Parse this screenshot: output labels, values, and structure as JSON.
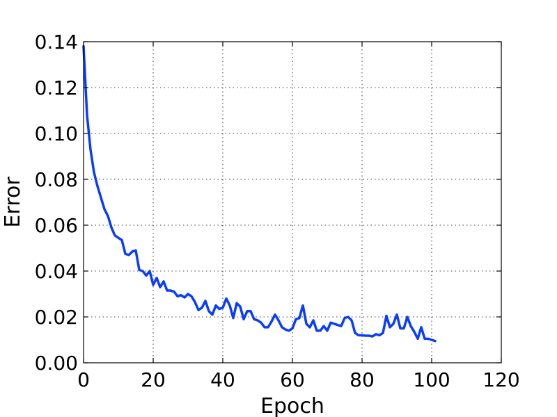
{
  "chart_data": {
    "type": "line",
    "title": "",
    "xlabel": "Epoch",
    "ylabel": "Error",
    "xlim": [
      0,
      120
    ],
    "ylim": [
      0,
      0.14
    ],
    "xticks": [
      0,
      20,
      40,
      60,
      80,
      100,
      120
    ],
    "xtick_labels": [
      "0",
      "20",
      "40",
      "60",
      "80",
      "100",
      "120"
    ],
    "yticks": [
      0.0,
      0.02,
      0.04,
      0.06,
      0.08,
      0.1,
      0.12,
      0.14
    ],
    "ytick_labels": [
      "0.00",
      "0.02",
      "0.04",
      "0.06",
      "0.08",
      "0.10",
      "0.12",
      "0.14"
    ],
    "grid": true,
    "series": [
      {
        "color": "#0a3cff",
        "x": [
          0,
          1,
          2,
          3,
          4,
          5,
          6,
          7,
          8,
          9,
          10,
          11,
          12,
          13,
          14,
          15,
          16,
          17,
          18,
          19,
          20,
          21,
          22,
          23,
          24,
          25,
          26,
          27,
          28,
          29,
          30,
          31,
          32,
          33,
          34,
          35,
          36,
          37,
          38,
          39,
          40,
          41,
          42,
          43,
          44,
          45,
          46,
          47,
          48,
          49,
          50,
          51,
          52,
          53,
          54,
          55,
          56,
          57,
          58,
          59,
          60,
          61,
          62,
          63,
          64,
          65,
          66,
          67,
          68,
          69,
          70,
          71,
          72,
          73,
          74,
          75,
          76,
          77,
          78,
          79,
          80,
          81,
          82,
          83,
          84,
          85,
          86,
          87,
          88,
          89,
          90,
          91,
          92,
          93,
          94,
          95,
          96,
          97,
          98,
          99,
          100,
          101
        ],
        "y": [
          0.138,
          0.108,
          0.093,
          0.083,
          0.077,
          0.072,
          0.067,
          0.064,
          0.059,
          0.0555,
          0.0545,
          0.0535,
          0.0475,
          0.047,
          0.0485,
          0.049,
          0.0405,
          0.04,
          0.038,
          0.04,
          0.034,
          0.037,
          0.033,
          0.0355,
          0.0315,
          0.0315,
          0.031,
          0.029,
          0.0295,
          0.0285,
          0.03,
          0.029,
          0.0265,
          0.023,
          0.024,
          0.027,
          0.0225,
          0.021,
          0.025,
          0.0235,
          0.024,
          0.028,
          0.025,
          0.0195,
          0.026,
          0.0245,
          0.019,
          0.0225,
          0.0225,
          0.019,
          0.0185,
          0.0175,
          0.0155,
          0.0155,
          0.018,
          0.021,
          0.0185,
          0.0155,
          0.0145,
          0.014,
          0.015,
          0.019,
          0.0195,
          0.025,
          0.017,
          0.0155,
          0.0185,
          0.014,
          0.014,
          0.016,
          0.014,
          0.0175,
          0.017,
          0.0165,
          0.016,
          0.0195,
          0.02,
          0.0185,
          0.013,
          0.012,
          0.012,
          0.0118,
          0.0118,
          0.0115,
          0.0125,
          0.012,
          0.013,
          0.0205,
          0.0155,
          0.017,
          0.021,
          0.015,
          0.015,
          0.02,
          0.016,
          0.0135,
          0.0105,
          0.0155,
          0.0105,
          0.0105,
          0.01,
          0.0095
        ]
      }
    ]
  }
}
